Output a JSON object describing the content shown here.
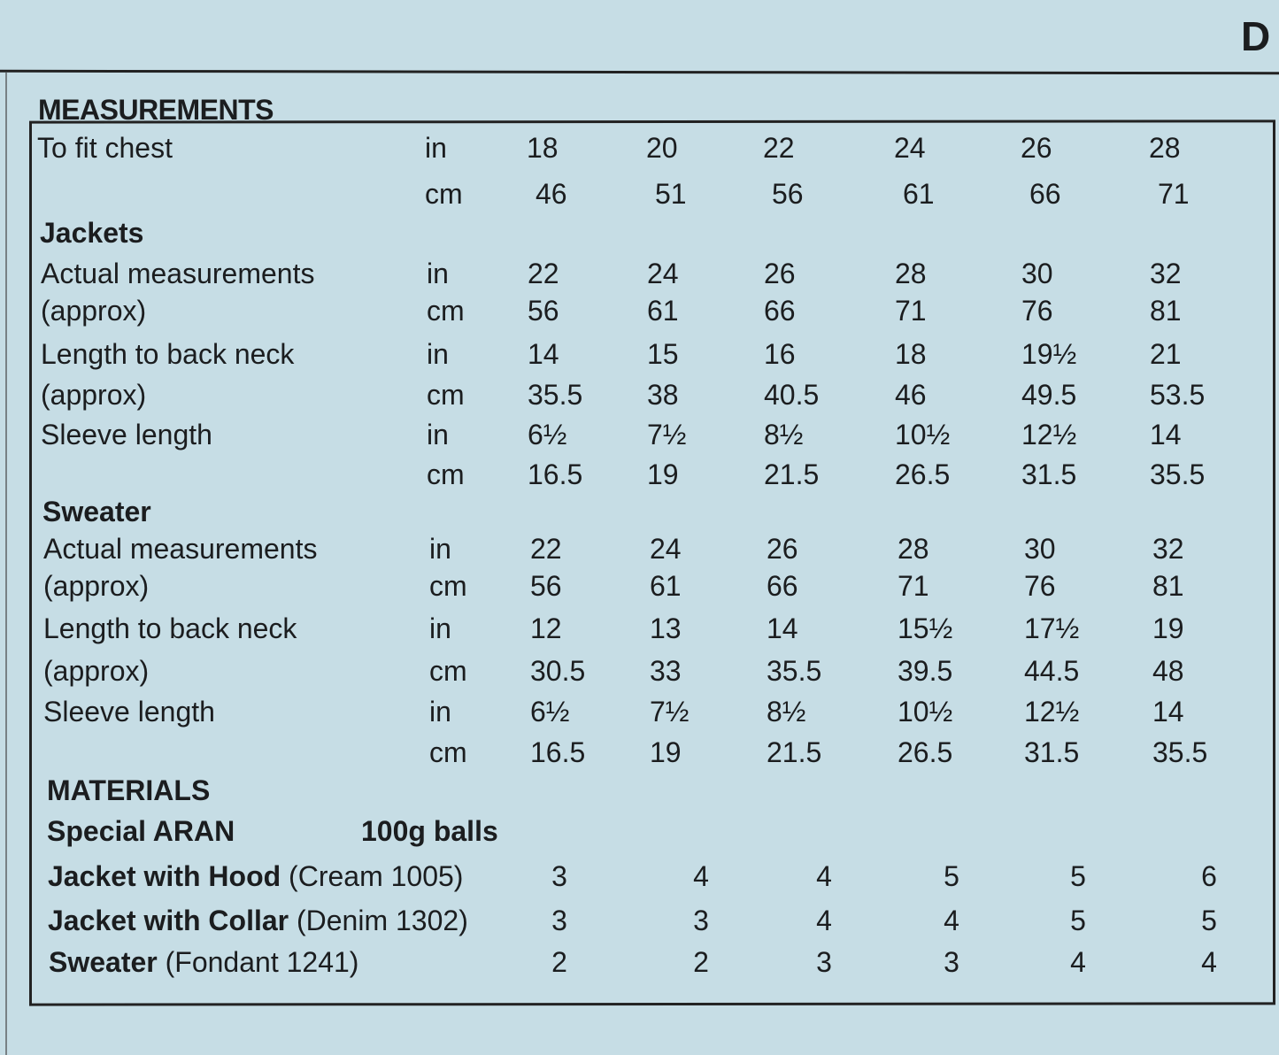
{
  "header_letter": "D",
  "measurements_title": "MEASUREMENTS",
  "chest": {
    "label": "To fit chest",
    "in_unit": "in",
    "in": [
      "18",
      "20",
      "22",
      "24",
      "26",
      "28"
    ],
    "cm_unit": "cm",
    "cm": [
      "46",
      "51",
      "56",
      "61",
      "66",
      "71"
    ]
  },
  "jackets": {
    "title": "Jackets",
    "rows": [
      {
        "label": "Actual measurements",
        "unit": "in",
        "values": [
          "22",
          "24",
          "26",
          "28",
          "30",
          "32"
        ]
      },
      {
        "label": "(approx)",
        "unit": "cm",
        "values": [
          "56",
          "61",
          "66",
          "71",
          "76",
          "81"
        ]
      },
      {
        "label": "Length to back neck",
        "unit": "in",
        "values": [
          "14",
          "15",
          "16",
          "18",
          "19½",
          "21"
        ]
      },
      {
        "label": "(approx)",
        "unit": "cm",
        "values": [
          "35.5",
          "38",
          "40.5",
          "46",
          "49.5",
          "53.5"
        ]
      },
      {
        "label": "Sleeve length",
        "unit": "in",
        "values": [
          "6½",
          "7½",
          "8½",
          "10½",
          "12½",
          "14"
        ]
      },
      {
        "label": "",
        "unit": "cm",
        "values": [
          "16.5",
          "19",
          "21.5",
          "26.5",
          "31.5",
          "35.5"
        ]
      }
    ]
  },
  "sweater": {
    "title": "Sweater",
    "rows": [
      {
        "label": "Actual measurements",
        "unit": "in",
        "values": [
          "22",
          "24",
          "26",
          "28",
          "30",
          "32"
        ]
      },
      {
        "label": "(approx)",
        "unit": "cm",
        "values": [
          "56",
          "61",
          "66",
          "71",
          "76",
          "81"
        ]
      },
      {
        "label": "Length to back neck",
        "unit": "in",
        "values": [
          "12",
          "13",
          "14",
          "15½",
          "17½",
          "19"
        ]
      },
      {
        "label": "(approx)",
        "unit": "cm",
        "values": [
          "30.5",
          "33",
          "35.5",
          "39.5",
          "44.5",
          "48"
        ]
      },
      {
        "label": "Sleeve length",
        "unit": "in",
        "values": [
          "6½",
          "7½",
          "8½",
          "10½",
          "12½",
          "14"
        ]
      },
      {
        "label": "",
        "unit": "cm",
        "values": [
          "16.5",
          "19",
          "21.5",
          "26.5",
          "31.5",
          "35.5"
        ]
      }
    ]
  },
  "materials": {
    "title": "MATERIALS",
    "yarn": "Special ARAN",
    "ball_size": "100g balls",
    "rows": [
      {
        "item": "Jacket with Hood",
        "shade": "(Cream 1005)",
        "values": [
          "3",
          "4",
          "4",
          "5",
          "5",
          "6"
        ]
      },
      {
        "item": "Jacket with Collar",
        "shade": "(Denim 1302)",
        "values": [
          "3",
          "3",
          "4",
          "4",
          "5",
          "5"
        ]
      },
      {
        "item": "Sweater",
        "shade": "(Fondant 1241)",
        "values": [
          "2",
          "2",
          "3",
          "3",
          "4",
          "4"
        ]
      }
    ]
  }
}
